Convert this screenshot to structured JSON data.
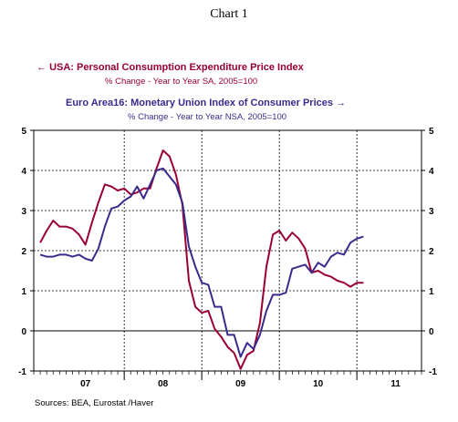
{
  "title": "Chart 1",
  "legend": {
    "usa_name": "USA: Personal Consumption Expenditure Price Index",
    "usa_sub": "% Change - Year to Year   SA, 2005=100",
    "euro_name": "Euro Area16: Monetary Union Index of Consumer Prices",
    "euro_sub": "% Change - Year to Year    NSA, 2005=100"
  },
  "source": "Sources:  BEA, Eurostat /Haver",
  "colors": {
    "usa": "#990033",
    "euro": "#3a2a8c"
  },
  "icons": {
    "usa_marker": "arrow-left-icon",
    "euro_marker": "arrow-right-icon"
  },
  "chart_data": {
    "type": "line",
    "title": "Chart 1",
    "x_start": "2006-11",
    "x_end": "2011-11",
    "x_tick_labels": [
      "07",
      "08",
      "09",
      "10",
      "11"
    ],
    "ylim": [
      -1,
      5
    ],
    "y_ticks": [
      -1,
      0,
      1,
      2,
      3,
      4,
      5
    ],
    "y_axis_both_sides": true,
    "grid": "dotted vertical lines at year boundaries, dotted horizontal at 1-4",
    "zero_line": true,
    "series": [
      {
        "name": "USA: Personal Consumption Expenditure Price Index",
        "color": "#990033",
        "start": "2006-12",
        "values": [
          2.2,
          2.5,
          2.75,
          2.6,
          2.6,
          2.55,
          2.4,
          2.15,
          2.7,
          3.2,
          3.65,
          3.6,
          3.5,
          3.55,
          3.4,
          3.45,
          3.55,
          3.55,
          4.05,
          4.5,
          4.35,
          3.9,
          3.15,
          1.25,
          0.6,
          0.45,
          0.5,
          0.05,
          -0.15,
          -0.4,
          -0.55,
          -0.95,
          -0.6,
          -0.5,
          0.2,
          1.6,
          2.4,
          2.5,
          2.25,
          2.45,
          2.3,
          2.05,
          1.45,
          1.5,
          1.4,
          1.35,
          1.25,
          1.2,
          1.1,
          1.2,
          1.2
        ]
      },
      {
        "name": "Euro Area16: Monetary Union Index of Consumer Prices",
        "color": "#3a2a8c",
        "start": "2006-12",
        "values": [
          1.9,
          1.85,
          1.85,
          1.9,
          1.9,
          1.85,
          1.9,
          1.8,
          1.75,
          2.05,
          2.6,
          3.05,
          3.1,
          3.25,
          3.35,
          3.6,
          3.3,
          3.65,
          4.0,
          4.05,
          3.85,
          3.65,
          3.2,
          2.1,
          1.6,
          1.2,
          1.15,
          0.6,
          0.6,
          -0.1,
          -0.1,
          -0.65,
          -0.3,
          -0.45,
          -0.1,
          0.5,
          0.9,
          0.9,
          0.95,
          1.55,
          1.6,
          1.65,
          1.45,
          1.7,
          1.6,
          1.85,
          1.95,
          1.9,
          2.2,
          2.3,
          2.35
        ]
      }
    ]
  }
}
